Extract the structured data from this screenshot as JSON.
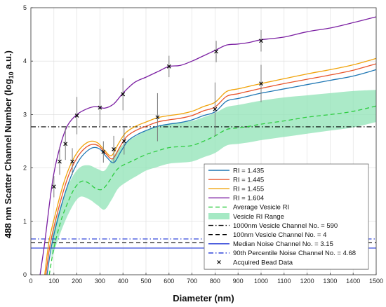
{
  "chart_data": {
    "type": "line",
    "xlabel": "Diameter (nm)",
    "ylabel_main": "488 nm Scatter Channel Number (log",
    "ylabel_sub": "10",
    "ylabel_end": " a.u.)",
    "xlim": [
      0,
      1500
    ],
    "ylim": [
      0,
      5
    ],
    "xticks": [
      0,
      100,
      200,
      300,
      400,
      500,
      600,
      700,
      800,
      900,
      1000,
      1100,
      1200,
      1300,
      1400,
      1500
    ],
    "yticks": [
      0,
      1,
      2,
      3,
      4,
      5
    ],
    "grid": true,
    "legend_position": "bottom-right",
    "series": [
      {
        "name": "RI = 1.435",
        "color": "#1f77b4",
        "style": "solid",
        "x": [
          70,
          90,
          120,
          150,
          180,
          210,
          240,
          270,
          300,
          330,
          360,
          390,
          420,
          460,
          500,
          550,
          600,
          650,
          700,
          750,
          800,
          850,
          900,
          950,
          1000,
          1100,
          1200,
          1300,
          1400,
          1500
        ],
        "y": [
          0.0,
          0.55,
          1.1,
          1.55,
          1.9,
          2.15,
          2.3,
          2.38,
          2.35,
          2.2,
          2.1,
          2.3,
          2.5,
          2.62,
          2.7,
          2.78,
          2.82,
          2.85,
          2.9,
          2.98,
          3.05,
          3.25,
          3.3,
          3.35,
          3.4,
          3.48,
          3.56,
          3.64,
          3.72,
          3.84
        ]
      },
      {
        "name": "RI = 1.445",
        "color": "#e8542b",
        "style": "solid",
        "x": [
          65,
          85,
          115,
          145,
          175,
          205,
          235,
          265,
          295,
          325,
          355,
          385,
          415,
          455,
          500,
          550,
          600,
          650,
          700,
          750,
          800,
          850,
          900,
          950,
          1000,
          1100,
          1200,
          1300,
          1400,
          1500
        ],
        "y": [
          0.0,
          0.6,
          1.15,
          1.62,
          1.98,
          2.22,
          2.37,
          2.44,
          2.41,
          2.27,
          2.17,
          2.38,
          2.58,
          2.7,
          2.78,
          2.86,
          2.9,
          2.93,
          2.98,
          3.07,
          3.14,
          3.34,
          3.39,
          3.44,
          3.49,
          3.58,
          3.66,
          3.74,
          3.83,
          3.95
        ]
      },
      {
        "name": "RI = 1.455",
        "color": "#f0a30a",
        "style": "solid",
        "x": [
          60,
          80,
          110,
          140,
          170,
          200,
          230,
          260,
          290,
          320,
          350,
          380,
          410,
          450,
          500,
          550,
          600,
          650,
          700,
          750,
          800,
          850,
          900,
          950,
          1000,
          1100,
          1200,
          1300,
          1400,
          1500
        ],
        "y": [
          0.0,
          0.65,
          1.2,
          1.68,
          2.04,
          2.28,
          2.43,
          2.5,
          2.47,
          2.33,
          2.23,
          2.45,
          2.65,
          2.77,
          2.86,
          2.94,
          2.98,
          3.01,
          3.06,
          3.15,
          3.23,
          3.43,
          3.48,
          3.53,
          3.58,
          3.67,
          3.76,
          3.84,
          3.93,
          4.05
        ]
      },
      {
        "name": "RI = 1.604",
        "color": "#7b1fa2",
        "style": "solid",
        "x": [
          40,
          60,
          80,
          100,
          130,
          160,
          200,
          240,
          280,
          320,
          360,
          400,
          450,
          500,
          550,
          600,
          650,
          700,
          750,
          800,
          850,
          900,
          950,
          1000,
          1100,
          1200,
          1300,
          1400,
          1500
        ],
        "y": [
          0.0,
          0.6,
          1.3,
          1.9,
          2.45,
          2.8,
          3.0,
          3.1,
          3.15,
          3.12,
          3.2,
          3.4,
          3.6,
          3.7,
          3.8,
          3.9,
          3.92,
          4.0,
          4.1,
          4.2,
          4.3,
          4.32,
          4.35,
          4.4,
          4.45,
          4.55,
          4.62,
          4.72,
          4.83
        ]
      },
      {
        "name": "Average Vesicle RI",
        "color": "#2ecc40",
        "style": "dashed",
        "x": [
          80,
          100,
          130,
          160,
          190,
          220,
          250,
          280,
          310,
          340,
          370,
          400,
          450,
          500,
          550,
          600,
          650,
          700,
          750,
          800,
          850,
          900,
          950,
          1000,
          1100,
          1200,
          1300,
          1400,
          1500
        ],
        "y": [
          0.0,
          0.5,
          1.0,
          1.35,
          1.62,
          1.75,
          1.72,
          1.62,
          1.6,
          1.75,
          1.95,
          2.05,
          2.15,
          2.25,
          2.32,
          2.38,
          2.4,
          2.42,
          2.5,
          2.6,
          2.72,
          2.75,
          2.78,
          2.82,
          2.88,
          2.95,
          3.0,
          3.06,
          3.16
        ]
      }
    ],
    "range_band": {
      "name": "Vesicle RI Range",
      "color": "#8fe3b5",
      "x": [
        90,
        130,
        170,
        210,
        250,
        290,
        320,
        350,
        380,
        420,
        460,
        500,
        550,
        600,
        650,
        700,
        750,
        800,
        850,
        900,
        950,
        1000,
        1100,
        1200,
        1300,
        1400,
        1500
      ],
      "lower": [
        0.3,
        0.8,
        1.2,
        1.45,
        1.42,
        1.3,
        1.22,
        1.4,
        1.62,
        1.75,
        1.85,
        1.95,
        2.02,
        2.08,
        2.1,
        2.12,
        2.2,
        2.28,
        2.42,
        2.45,
        2.48,
        2.52,
        2.58,
        2.64,
        2.7,
        2.76,
        2.86
      ],
      "upper": [
        0.7,
        1.3,
        1.75,
        2.0,
        2.05,
        1.98,
        1.95,
        2.15,
        2.35,
        2.5,
        2.6,
        2.7,
        2.78,
        2.83,
        2.86,
        2.88,
        2.95,
        3.03,
        3.14,
        3.18,
        3.22,
        3.26,
        3.32,
        3.36,
        3.4,
        3.44,
        3.46
      ]
    },
    "hlines": [
      {
        "name": "1000nm Vesicle Channel No. = 590",
        "y": 2.77,
        "color": "#000000",
        "style": "dashdot"
      },
      {
        "name": "100nm Vesicle Channel No. = 4",
        "y": 0.6,
        "color": "#000000",
        "style": "dashed"
      },
      {
        "name": "Median Noise Channel No. = 3.15",
        "y": 0.5,
        "color": "#1f35d6",
        "style": "solid"
      },
      {
        "name": "90th Percentile Noise Channel No. = 4.68",
        "y": 0.67,
        "color": "#1f35d6",
        "style": "dashdot"
      }
    ],
    "bead_data": {
      "name": "Acquired Bead Data",
      "marker": "x",
      "points": [
        {
          "x": 100,
          "y": 1.65,
          "err": 0.2
        },
        {
          "x": 125,
          "y": 2.12,
          "err": 0.25
        },
        {
          "x": 150,
          "y": 2.45,
          "err": 0.3
        },
        {
          "x": 180,
          "y": 2.12,
          "err": 0.25
        },
        {
          "x": 200,
          "y": 2.98,
          "err": 0.35
        },
        {
          "x": 300,
          "y": 3.13,
          "err": 0.35
        },
        {
          "x": 315,
          "y": 2.3,
          "err": 0.2
        },
        {
          "x": 360,
          "y": 2.35,
          "err": 0.25
        },
        {
          "x": 400,
          "y": 3.38,
          "err": 0.3
        },
        {
          "x": 405,
          "y": 2.5,
          "err": 0.25
        },
        {
          "x": 550,
          "y": 2.95,
          "err": 0.45
        },
        {
          "x": 600,
          "y": 3.9,
          "err": 0.2
        },
        {
          "x": 800,
          "y": 3.1,
          "err": 0.5
        },
        {
          "x": 805,
          "y": 4.18,
          "err": 0.2
        },
        {
          "x": 1000,
          "y": 3.58,
          "err": 0.35
        },
        {
          "x": 1000,
          "y": 4.38,
          "err": 0.2
        }
      ]
    },
    "legend": [
      {
        "label": "RI = 1.435",
        "kind": "line",
        "color": "#1f77b4",
        "style": "solid"
      },
      {
        "label": "RI = 1.445",
        "kind": "line",
        "color": "#e8542b",
        "style": "solid"
      },
      {
        "label": "RI = 1.455",
        "kind": "line",
        "color": "#f0a30a",
        "style": "solid"
      },
      {
        "label": "RI = 1.604",
        "kind": "line",
        "color": "#7b1fa2",
        "style": "solid"
      },
      {
        "label": "Average Vesicle RI",
        "kind": "line",
        "color": "#2ecc40",
        "style": "dashed"
      },
      {
        "label": "Vesicle RI Range",
        "kind": "patch",
        "color": "#8fe3b5",
        "style": "solid"
      },
      {
        "label": "1000nm Vesicle Channel No. = 590",
        "kind": "line",
        "color": "#000000",
        "style": "dashdot"
      },
      {
        "label": "100nm Vesicle Channel No. = 4",
        "kind": "line",
        "color": "#000000",
        "style": "dashed"
      },
      {
        "label": "Median Noise Channel No. = 3.15",
        "kind": "line",
        "color": "#1f35d6",
        "style": "solid"
      },
      {
        "label": "90th Percentile Noise Channel No. = 4.68",
        "kind": "line",
        "color": "#1f35d6",
        "style": "dashdot"
      },
      {
        "label": "Acquired Bead Data",
        "kind": "marker",
        "color": "#000000",
        "style": "x"
      }
    ]
  }
}
